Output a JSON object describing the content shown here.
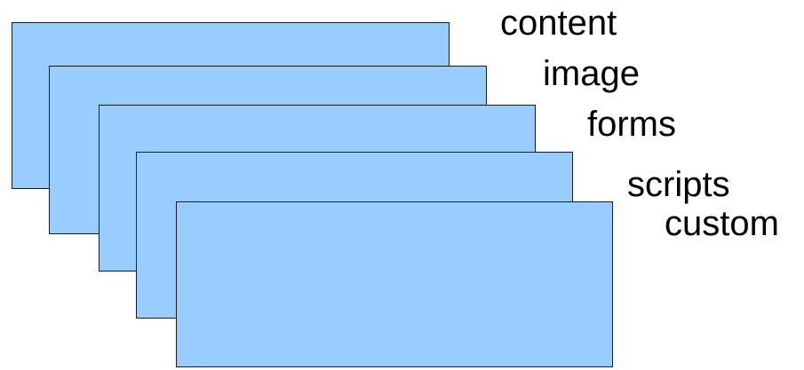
{
  "layers": [
    {
      "label": "content"
    },
    {
      "label": "image"
    },
    {
      "label": "forms"
    },
    {
      "label": "scripts"
    },
    {
      "label": "custom"
    }
  ],
  "colors": {
    "layer_fill": "#99ccff",
    "layer_border": "#1a1a1a",
    "text": "#000000",
    "background": "#ffffff"
  }
}
